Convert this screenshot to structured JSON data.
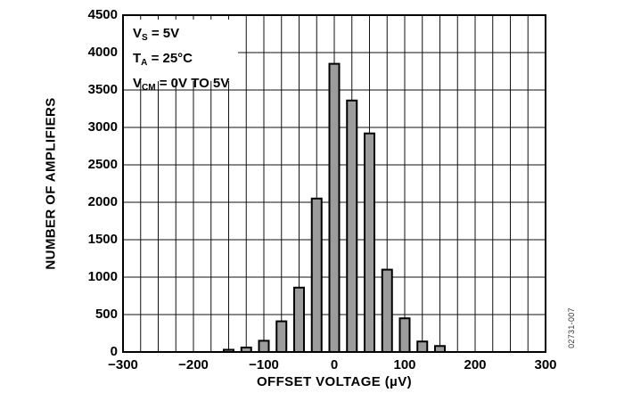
{
  "figure": {
    "watermark": "02731-007"
  },
  "annotation_box": {
    "lines": [
      {
        "sym": "V",
        "sub": "S",
        "rest": " = 5V"
      },
      {
        "sym": "T",
        "sub": "A",
        "rest": " = 25°C"
      },
      {
        "sym": "V",
        "sub": "CM",
        "rest": " = 0V TO 5V"
      }
    ]
  },
  "chart_data": {
    "type": "bar",
    "title": "",
    "xlabel": "OFFSET VOLTAGE (µV)",
    "ylabel": "NUMBER OF AMPLIFIERS",
    "xlim": [
      -300,
      300
    ],
    "ylim": [
      0,
      4500
    ],
    "grid": true,
    "x_gridline_step_uV": 25,
    "y_gridline_step": 500,
    "legend_position": "none",
    "bar_color": "#9c9c9c",
    "bar_edge_color": "#000000",
    "categories_uV": [
      -150,
      -125,
      -100,
      -75,
      -50,
      -25,
      0,
      25,
      50,
      75,
      100,
      125,
      150
    ],
    "values": [
      30,
      60,
      150,
      410,
      860,
      2050,
      3850,
      3360,
      2920,
      1100,
      450,
      140,
      80
    ],
    "x_ticks": [
      {
        "v": -300,
        "label": "−300"
      },
      {
        "v": -200,
        "label": "−200"
      },
      {
        "v": -100,
        "label": "−100"
      },
      {
        "v": 0,
        "label": "0"
      },
      {
        "v": 100,
        "label": "100"
      },
      {
        "v": 200,
        "label": "200"
      },
      {
        "v": 300,
        "label": "300"
      }
    ],
    "y_ticks": [
      {
        "v": 0,
        "label": "0"
      },
      {
        "v": 500,
        "label": "500"
      },
      {
        "v": 1000,
        "label": "1000"
      },
      {
        "v": 1500,
        "label": "1500"
      },
      {
        "v": 2000,
        "label": "2000"
      },
      {
        "v": 2500,
        "label": "2500"
      },
      {
        "v": 3000,
        "label": "3000"
      },
      {
        "v": 3500,
        "label": "3500"
      },
      {
        "v": 4000,
        "label": "4000"
      },
      {
        "v": 4500,
        "label": "4500"
      }
    ],
    "conditions": [
      "VS = 5V",
      "TA = 25°C",
      "VCM = 0V TO 5V"
    ]
  }
}
